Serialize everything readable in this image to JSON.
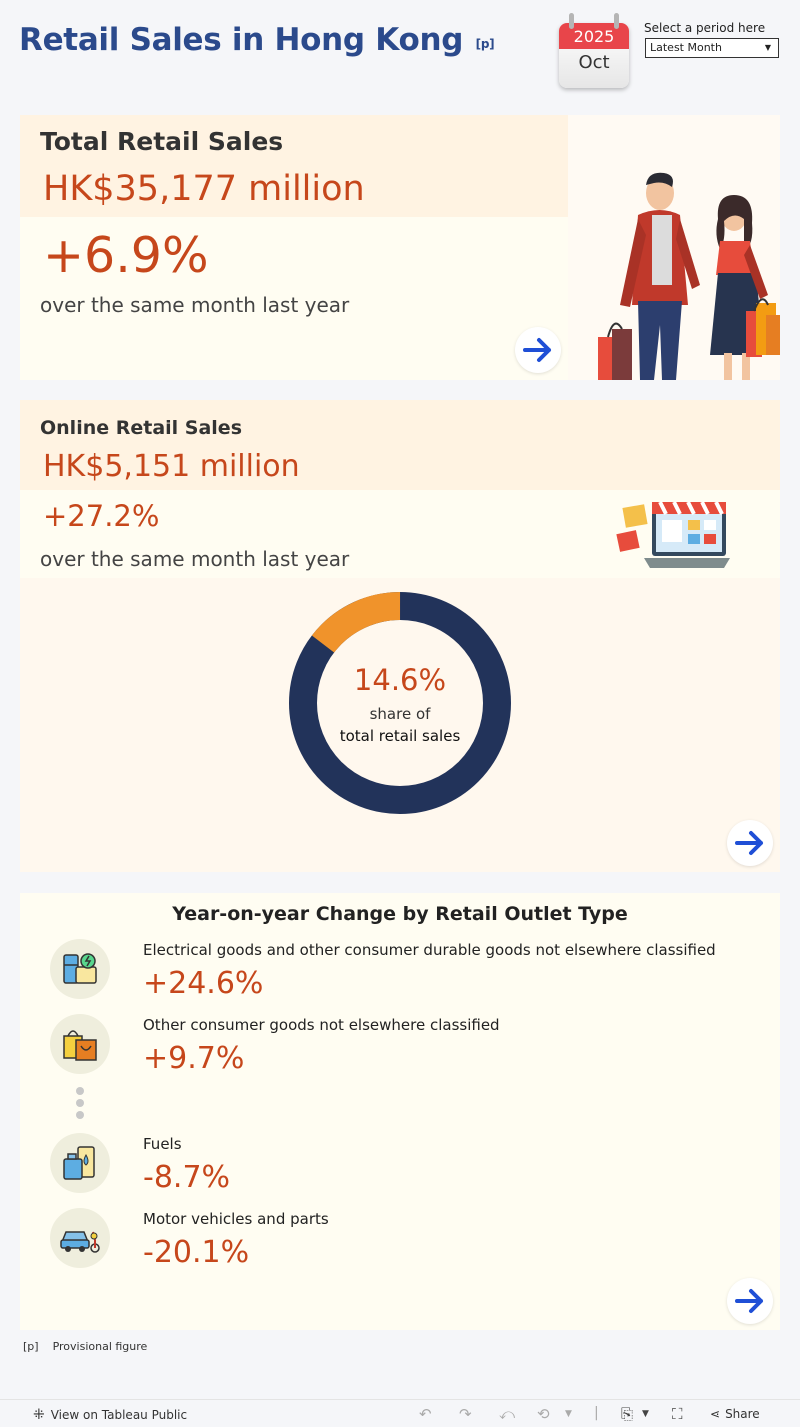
{
  "header": {
    "title": "Retail Sales in Hong Kong",
    "title_note": "[p]",
    "calendar_year": "2025",
    "calendar_month": "Oct",
    "period_label": "Select a period here",
    "period_selected": "Latest Month"
  },
  "total": {
    "title": "Total Retail Sales",
    "value": "HK$35,177 million",
    "change": "+6.9%",
    "subtitle": "over the same month last year"
  },
  "online": {
    "title": "Online Retail Sales",
    "value": "HK$5,151 million",
    "change": "+27.2%",
    "subtitle": "over the same month last year",
    "share": "14.6%",
    "share_line1": "share of",
    "share_line2": "total retail sales",
    "share_fraction": 0.146,
    "colors": {
      "online": "#f0932b",
      "other": "#22335a"
    }
  },
  "yoy": {
    "title": "Year-on-year Change by Retail Outlet Type",
    "items": [
      {
        "label": "Electrical goods and other consumer durable goods not elsewhere classified",
        "value": "+24.6%",
        "icon": "appliance-icon"
      },
      {
        "label": "Other consumer goods not elsewhere classified",
        "value": "+9.7%",
        "icon": "shopping-bag-icon"
      },
      {
        "label": "Fuels",
        "value": "-8.7%",
        "icon": "fuel-icon"
      },
      {
        "label": "Motor vehicles and parts",
        "value": "-20.1%",
        "icon": "car-icon"
      }
    ]
  },
  "footnote": {
    "mark": "[p]",
    "text": "Provisional figure"
  },
  "toolbar": {
    "view_label": "View on Tableau Public",
    "share_label": "Share"
  }
}
